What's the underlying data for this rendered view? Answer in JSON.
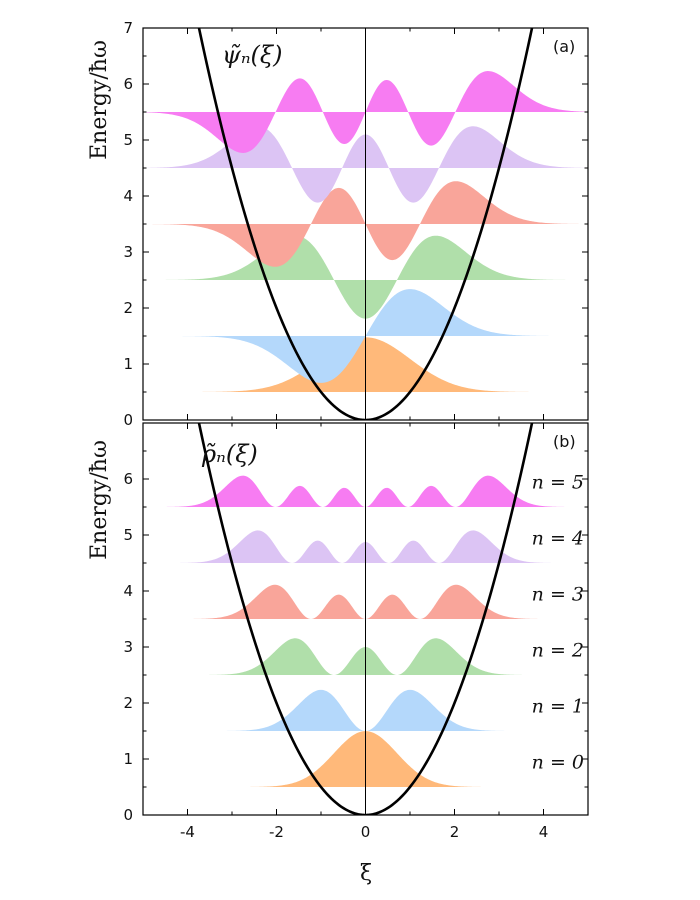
{
  "chart_data": [
    {
      "type": "area",
      "panel_tag": "(a)",
      "title": "ψ̃ₙ(ξ)",
      "ylabel": "Energy/ħω",
      "xlim": [
        -5,
        5
      ],
      "ylim": [
        0,
        7
      ],
      "yticks": [
        0,
        1,
        2,
        3,
        4,
        5,
        6,
        7
      ],
      "quantity": "wavefunction",
      "amplitude_scale": 1.3,
      "potential": {
        "expression": "V(ξ) = ξ²/2",
        "color": "#000000"
      },
      "series": [
        {
          "n": 0,
          "baseline": 0.5,
          "color": "#ffb97a"
        },
        {
          "n": 1,
          "baseline": 1.5,
          "color": "#b4d8fb"
        },
        {
          "n": 2,
          "baseline": 2.5,
          "color": "#b0dfaa"
        },
        {
          "n": 3,
          "baseline": 3.5,
          "color": "#f9a59a"
        },
        {
          "n": 4,
          "baseline": 4.5,
          "color": "#dcc4f4"
        },
        {
          "n": 5,
          "baseline": 5.5,
          "color": "#f77cf2"
        }
      ]
    },
    {
      "type": "area",
      "panel_tag": "(b)",
      "title": "ρ̃ₙ(ξ)",
      "ylabel": "Energy/ħω",
      "xlabel": "ξ",
      "xlim": [
        -5,
        5
      ],
      "ylim": [
        0,
        7
      ],
      "yticks": [
        0,
        1,
        2,
        3,
        4,
        5,
        6
      ],
      "xticks": [
        -4,
        -2,
        0,
        2,
        4
      ],
      "quantity": "probability density",
      "amplitude_scale": 1.77,
      "potential": {
        "expression": "V(ξ) = ξ²/2",
        "color": "#000000"
      },
      "series": [
        {
          "n": 0,
          "name": "n = 0",
          "baseline": 0.5,
          "color": "#ffb97a"
        },
        {
          "n": 1,
          "name": "n = 1",
          "baseline": 1.5,
          "color": "#b4d8fb"
        },
        {
          "n": 2,
          "name": "n = 2",
          "baseline": 2.5,
          "color": "#b0dfaa"
        },
        {
          "n": 3,
          "name": "n = 3",
          "baseline": 3.5,
          "color": "#f9a59a"
        },
        {
          "n": 4,
          "name": "n = 4",
          "baseline": 4.5,
          "color": "#dcc4f4"
        },
        {
          "n": 5,
          "name": "n = 5",
          "baseline": 5.5,
          "color": "#f77cf2"
        }
      ]
    }
  ]
}
